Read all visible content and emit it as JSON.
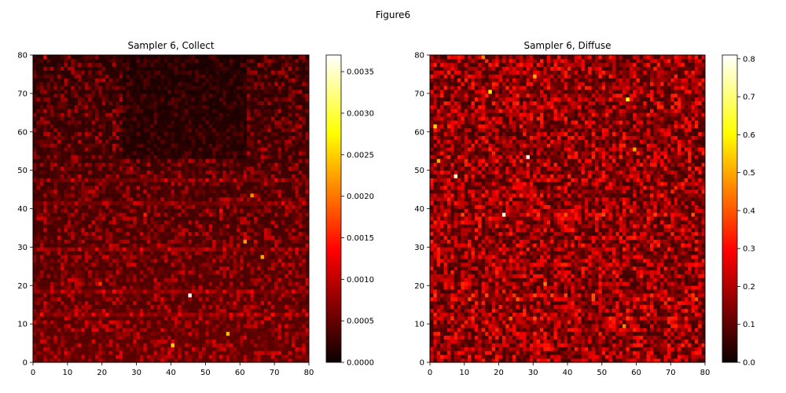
{
  "figure": {
    "suptitle": "Figure6"
  },
  "colors": {
    "colormap": "hot",
    "stops": [
      "#0b0000",
      "#ff0000",
      "#ffff00",
      "#ffffff"
    ]
  },
  "chart_data": [
    {
      "type": "heatmap",
      "title": "Sampler 6, Collect",
      "xlabel": "",
      "ylabel": "",
      "xlim": [
        0,
        80
      ],
      "ylim": [
        0,
        80
      ],
      "xticks": [
        "0",
        "10",
        "20",
        "30",
        "40",
        "50",
        "60",
        "70",
        "80"
      ],
      "yticks": [
        "0",
        "10",
        "20",
        "30",
        "40",
        "50",
        "60",
        "70",
        "80"
      ],
      "grid_size": 80,
      "colorbar": {
        "range": [
          0.0,
          0.0037
        ],
        "ticks": [
          "0.0000",
          "0.0005",
          "0.0010",
          "0.0015",
          "0.0020",
          "0.0025",
          "0.0030",
          "0.0035"
        ]
      },
      "hotspots": [
        {
          "x": 45.5,
          "y": 17.5,
          "value": 0.0037
        },
        {
          "x": 40.5,
          "y": 4.5,
          "value": 0.0025
        },
        {
          "x": 56.5,
          "y": 7.5,
          "value": 0.0024
        },
        {
          "x": 63.5,
          "y": 43.5,
          "value": 0.0021
        },
        {
          "x": 61.5,
          "y": 31.5,
          "value": 0.0022
        },
        {
          "x": 66.5,
          "y": 27.5,
          "value": 0.0023
        },
        {
          "x": 19.5,
          "y": 20.5,
          "value": 0.0016
        },
        {
          "x": 32.5,
          "y": 38.5,
          "value": 0.0015
        },
        {
          "x": 54.5,
          "y": 39.5,
          "value": 0.0014
        },
        {
          "x": 3.5,
          "y": 79.5,
          "value": 0.0013
        }
      ]
    },
    {
      "type": "heatmap",
      "title": "Sampler 6, Diffuse",
      "xlabel": "",
      "ylabel": "",
      "xlim": [
        0,
        80
      ],
      "ylim": [
        0,
        80
      ],
      "xticks": [
        "0",
        "10",
        "20",
        "30",
        "40",
        "50",
        "60",
        "70",
        "80"
      ],
      "yticks": [
        "0",
        "10",
        "20",
        "30",
        "40",
        "50",
        "60",
        "70",
        "80"
      ],
      "grid_size": 80,
      "colorbar": {
        "range": [
          0.0,
          0.81
        ],
        "ticks": [
          "0.0",
          "0.1",
          "0.2",
          "0.3",
          "0.4",
          "0.5",
          "0.6",
          "0.7",
          "0.8"
        ]
      },
      "hotspots": [
        {
          "x": 28.5,
          "y": 53.5,
          "value": 0.81
        },
        {
          "x": 21.5,
          "y": 38.5,
          "value": 0.78
        },
        {
          "x": 7.5,
          "y": 48.5,
          "value": 0.77
        },
        {
          "x": 17.5,
          "y": 70.5,
          "value": 0.6
        },
        {
          "x": 57.5,
          "y": 68.5,
          "value": 0.62
        },
        {
          "x": 1.5,
          "y": 61.5,
          "value": 0.55
        },
        {
          "x": 30.5,
          "y": 74.5,
          "value": 0.5
        },
        {
          "x": 59.5,
          "y": 55.5,
          "value": 0.5
        },
        {
          "x": 33.5,
          "y": 20.5,
          "value": 0.45
        },
        {
          "x": 2.5,
          "y": 52.5,
          "value": 0.5
        },
        {
          "x": 15.5,
          "y": 79.5,
          "value": 0.45
        },
        {
          "x": 56.5,
          "y": 9.5,
          "value": 0.45
        }
      ]
    }
  ]
}
